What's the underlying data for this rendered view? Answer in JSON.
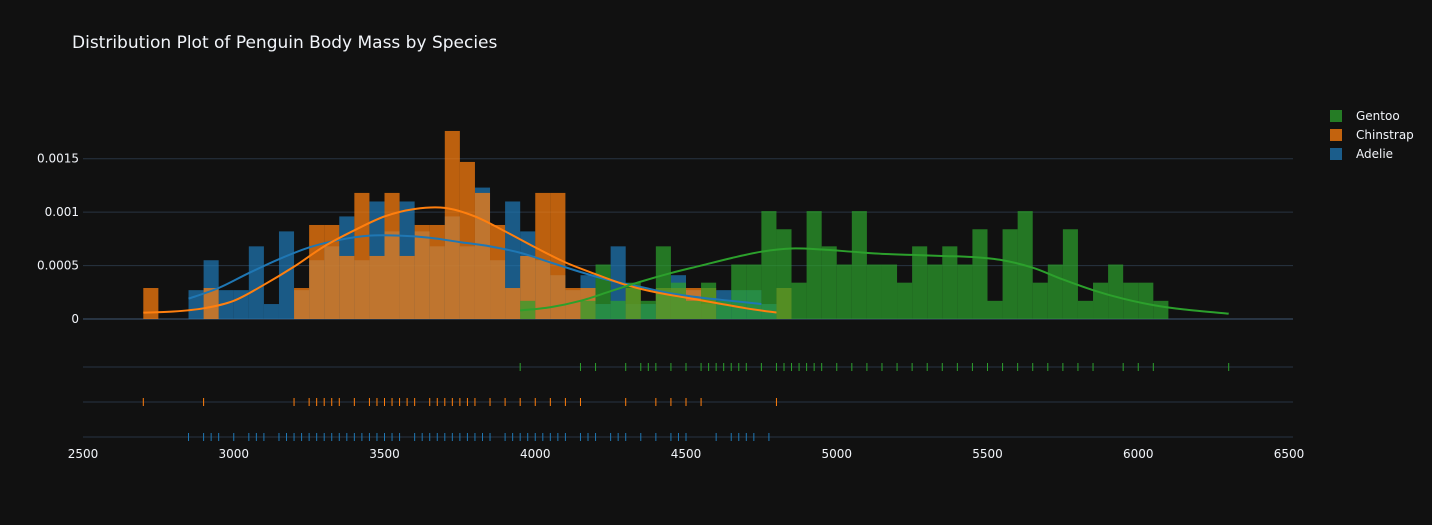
{
  "title": "Distribution Plot of Penguin Body Mass by Species",
  "colors": {
    "background": "#111111",
    "grid": "#283442",
    "axis_text": "#f2f5fa"
  },
  "legend": {
    "items": [
      {
        "label": "Gentoo",
        "color": "#2ca02c"
      },
      {
        "label": "Chinstrap",
        "color": "#ff7f0e"
      },
      {
        "label": "Adelie",
        "color": "#1f77b4"
      }
    ]
  },
  "chart_data": {
    "type": "histogram",
    "title": "Distribution Plot of Penguin Body Mass by Species",
    "xlabel": "",
    "ylabel": "",
    "xlim": [
      2500,
      6500
    ],
    "ylim": [
      0,
      0.0019
    ],
    "x_ticks": [
      "2500",
      "3000",
      "3500",
      "4000",
      "4500",
      "5000",
      "5500",
      "6000",
      "6500"
    ],
    "y_ticks": [
      "0",
      "0.0005",
      "0.001",
      "0.0015"
    ],
    "bin_width": 50,
    "grid": true,
    "legend_position": "top-right",
    "series": [
      {
        "name": "Adelie",
        "color": "#1f77b4",
        "hist": [
          [
            2850,
            0.00027
          ],
          [
            2900,
            0.00055
          ],
          [
            2950,
            0.00027
          ],
          [
            3000,
            0.00027
          ],
          [
            3050,
            0.00068
          ],
          [
            3100,
            0.00014
          ],
          [
            3150,
            0.00082
          ],
          [
            3200,
            0.00027
          ],
          [
            3250,
            0.00055
          ],
          [
            3300,
            0.00068
          ],
          [
            3350,
            0.00096
          ],
          [
            3400,
            0.00055
          ],
          [
            3450,
            0.0011
          ],
          [
            3500,
            0.00082
          ],
          [
            3550,
            0.0011
          ],
          [
            3600,
            0.00082
          ],
          [
            3650,
            0.00068
          ],
          [
            3700,
            0.00096
          ],
          [
            3750,
            0.00068
          ],
          [
            3800,
            0.00123
          ],
          [
            3850,
            0.00055
          ],
          [
            3900,
            0.0011
          ],
          [
            3950,
            0.00082
          ],
          [
            4000,
            0.00055
          ],
          [
            4050,
            0.00041
          ],
          [
            4100,
            0.00027
          ],
          [
            4150,
            0.00041
          ],
          [
            4200,
            0.00014
          ],
          [
            4250,
            0.00068
          ],
          [
            4300,
            0.00014
          ],
          [
            4350,
            0.00014
          ],
          [
            4400,
            0.00027
          ],
          [
            4450,
            0.00041
          ],
          [
            4500,
            0.00027
          ],
          [
            4550,
            0.00014
          ],
          [
            4600,
            0.00027
          ],
          [
            4650,
            0.00027
          ],
          [
            4700,
            0.00027
          ],
          [
            4750,
            0.00014
          ]
        ],
        "kde": [
          [
            2850,
            0.00019
          ],
          [
            2950,
            0.00029
          ],
          [
            3050,
            0.00043
          ],
          [
            3150,
            0.00056
          ],
          [
            3250,
            0.00067
          ],
          [
            3350,
            0.00074
          ],
          [
            3450,
            0.00078
          ],
          [
            3550,
            0.00078
          ],
          [
            3650,
            0.00076
          ],
          [
            3750,
            0.00072
          ],
          [
            3850,
            0.00068
          ],
          [
            3950,
            0.00062
          ],
          [
            4050,
            0.00053
          ],
          [
            4150,
            0.00044
          ],
          [
            4250,
            0.00036
          ],
          [
            4350,
            0.0003
          ],
          [
            4450,
            0.00024
          ],
          [
            4550,
            0.0002
          ],
          [
            4650,
            0.00017
          ],
          [
            4750,
            0.00014
          ]
        ],
        "rug": [
          2850,
          2900,
          2925,
          2950,
          3000,
          3050,
          3075,
          3100,
          3150,
          3175,
          3200,
          3225,
          3250,
          3275,
          3300,
          3325,
          3350,
          3375,
          3400,
          3425,
          3450,
          3475,
          3500,
          3525,
          3550,
          3600,
          3625,
          3650,
          3675,
          3700,
          3725,
          3750,
          3775,
          3800,
          3825,
          3850,
          3900,
          3925,
          3950,
          3975,
          4000,
          4025,
          4050,
          4075,
          4100,
          4150,
          4175,
          4200,
          4250,
          4275,
          4300,
          4350,
          4400,
          4450,
          4475,
          4500,
          4600,
          4650,
          4675,
          4700,
          4725,
          4775
        ]
      },
      {
        "name": "Chinstrap",
        "color": "#ff7f0e",
        "hist": [
          [
            2700,
            0.00029
          ],
          [
            2900,
            0.00029
          ],
          [
            3200,
            0.00029
          ],
          [
            3250,
            0.00088
          ],
          [
            3300,
            0.00088
          ],
          [
            3350,
            0.00059
          ],
          [
            3400,
            0.00118
          ],
          [
            3450,
            0.00059
          ],
          [
            3500,
            0.00118
          ],
          [
            3550,
            0.00059
          ],
          [
            3600,
            0.00088
          ],
          [
            3650,
            0.00088
          ],
          [
            3700,
            0.00176
          ],
          [
            3750,
            0.00147
          ],
          [
            3800,
            0.00118
          ],
          [
            3850,
            0.00088
          ],
          [
            3900,
            0.00029
          ],
          [
            3950,
            0.00059
          ],
          [
            4000,
            0.00118
          ],
          [
            4050,
            0.00118
          ],
          [
            4100,
            0.00029
          ],
          [
            4150,
            0.00029
          ],
          [
            4300,
            0.00029
          ],
          [
            4400,
            0.00029
          ],
          [
            4450,
            0.00029
          ],
          [
            4500,
            0.00029
          ],
          [
            4550,
            0.00029
          ],
          [
            4800,
            0.00029
          ]
        ],
        "kde": [
          [
            2700,
            6e-05
          ],
          [
            2800,
            7e-05
          ],
          [
            2900,
            0.0001
          ],
          [
            3000,
            0.00017
          ],
          [
            3100,
            0.00032
          ],
          [
            3200,
            0.00049
          ],
          [
            3300,
            0.00068
          ],
          [
            3400,
            0.00083
          ],
          [
            3500,
            0.00096
          ],
          [
            3600,
            0.00103
          ],
          [
            3700,
            0.00104
          ],
          [
            3800,
            0.00096
          ],
          [
            3900,
            0.00082
          ],
          [
            4000,
            0.00067
          ],
          [
            4100,
            0.00053
          ],
          [
            4200,
            0.00042
          ],
          [
            4300,
            0.00032
          ],
          [
            4400,
            0.00025
          ],
          [
            4500,
            0.0002
          ],
          [
            4600,
            0.00015
          ],
          [
            4700,
            0.0001
          ],
          [
            4800,
            6e-05
          ]
        ],
        "rug": [
          2700,
          2900,
          3200,
          3250,
          3275,
          3300,
          3325,
          3350,
          3400,
          3450,
          3475,
          3500,
          3525,
          3550,
          3575,
          3600,
          3650,
          3675,
          3700,
          3725,
          3750,
          3775,
          3800,
          3850,
          3900,
          3950,
          4000,
          4050,
          4100,
          4150,
          4300,
          4400,
          4450,
          4500,
          4550,
          4800
        ]
      },
      {
        "name": "Gentoo",
        "color": "#2ca02c",
        "hist": [
          [
            3950,
            0.00017
          ],
          [
            4150,
            0.00017
          ],
          [
            4200,
            0.00051
          ],
          [
            4250,
            0.00017
          ],
          [
            4300,
            0.00034
          ],
          [
            4350,
            0.00017
          ],
          [
            4400,
            0.00068
          ],
          [
            4450,
            0.00034
          ],
          [
            4500,
            0.00017
          ],
          [
            4550,
            0.00034
          ],
          [
            4600,
            0.00017
          ],
          [
            4650,
            0.00051
          ],
          [
            4700,
            0.00051
          ],
          [
            4750,
            0.00101
          ],
          [
            4800,
            0.00084
          ],
          [
            4850,
            0.00034
          ],
          [
            4900,
            0.00101
          ],
          [
            4950,
            0.00068
          ],
          [
            5000,
            0.00051
          ],
          [
            5050,
            0.00101
          ],
          [
            5100,
            0.00051
          ],
          [
            5150,
            0.00051
          ],
          [
            5200,
            0.00034
          ],
          [
            5250,
            0.00068
          ],
          [
            5300,
            0.00051
          ],
          [
            5350,
            0.00068
          ],
          [
            5400,
            0.00051
          ],
          [
            5450,
            0.00084
          ],
          [
            5500,
            0.00017
          ],
          [
            5550,
            0.00084
          ],
          [
            5600,
            0.00101
          ],
          [
            5650,
            0.00034
          ],
          [
            5700,
            0.00051
          ],
          [
            5750,
            0.00084
          ],
          [
            5800,
            0.00017
          ],
          [
            5850,
            0.00034
          ],
          [
            5900,
            0.00051
          ],
          [
            5950,
            0.00034
          ],
          [
            6000,
            0.00034
          ],
          [
            6050,
            0.00017
          ]
        ],
        "kde": [
          [
            3950,
            8e-05
          ],
          [
            4050,
            0.00011
          ],
          [
            4150,
            0.00017
          ],
          [
            4250,
            0.00026
          ],
          [
            4350,
            0.00035
          ],
          [
            4450,
            0.00043
          ],
          [
            4550,
            0.0005
          ],
          [
            4650,
            0.00057
          ],
          [
            4750,
            0.00063
          ],
          [
            4850,
            0.00066
          ],
          [
            4950,
            0.00065
          ],
          [
            5050,
            0.00063
          ],
          [
            5150,
            0.00061
          ],
          [
            5250,
            0.0006
          ],
          [
            5350,
            0.00059
          ],
          [
            5450,
            0.00058
          ],
          [
            5550,
            0.00055
          ],
          [
            5650,
            0.00048
          ],
          [
            5750,
            0.00037
          ],
          [
            5850,
            0.00027
          ],
          [
            5950,
            0.00019
          ],
          [
            6050,
            0.00013
          ],
          [
            6150,
            9e-05
          ],
          [
            6300,
            5e-05
          ]
        ],
        "rug": [
          3950,
          4150,
          4200,
          4300,
          4350,
          4375,
          4400,
          4450,
          4500,
          4550,
          4575,
          4600,
          4625,
          4650,
          4675,
          4700,
          4750,
          4800,
          4825,
          4850,
          4875,
          4900,
          4925,
          4950,
          5000,
          5050,
          5100,
          5150,
          5200,
          5250,
          5300,
          5350,
          5400,
          5450,
          5500,
          5550,
          5600,
          5650,
          5700,
          5750,
          5800,
          5850,
          5950,
          6000,
          6050,
          6300
        ]
      }
    ]
  }
}
